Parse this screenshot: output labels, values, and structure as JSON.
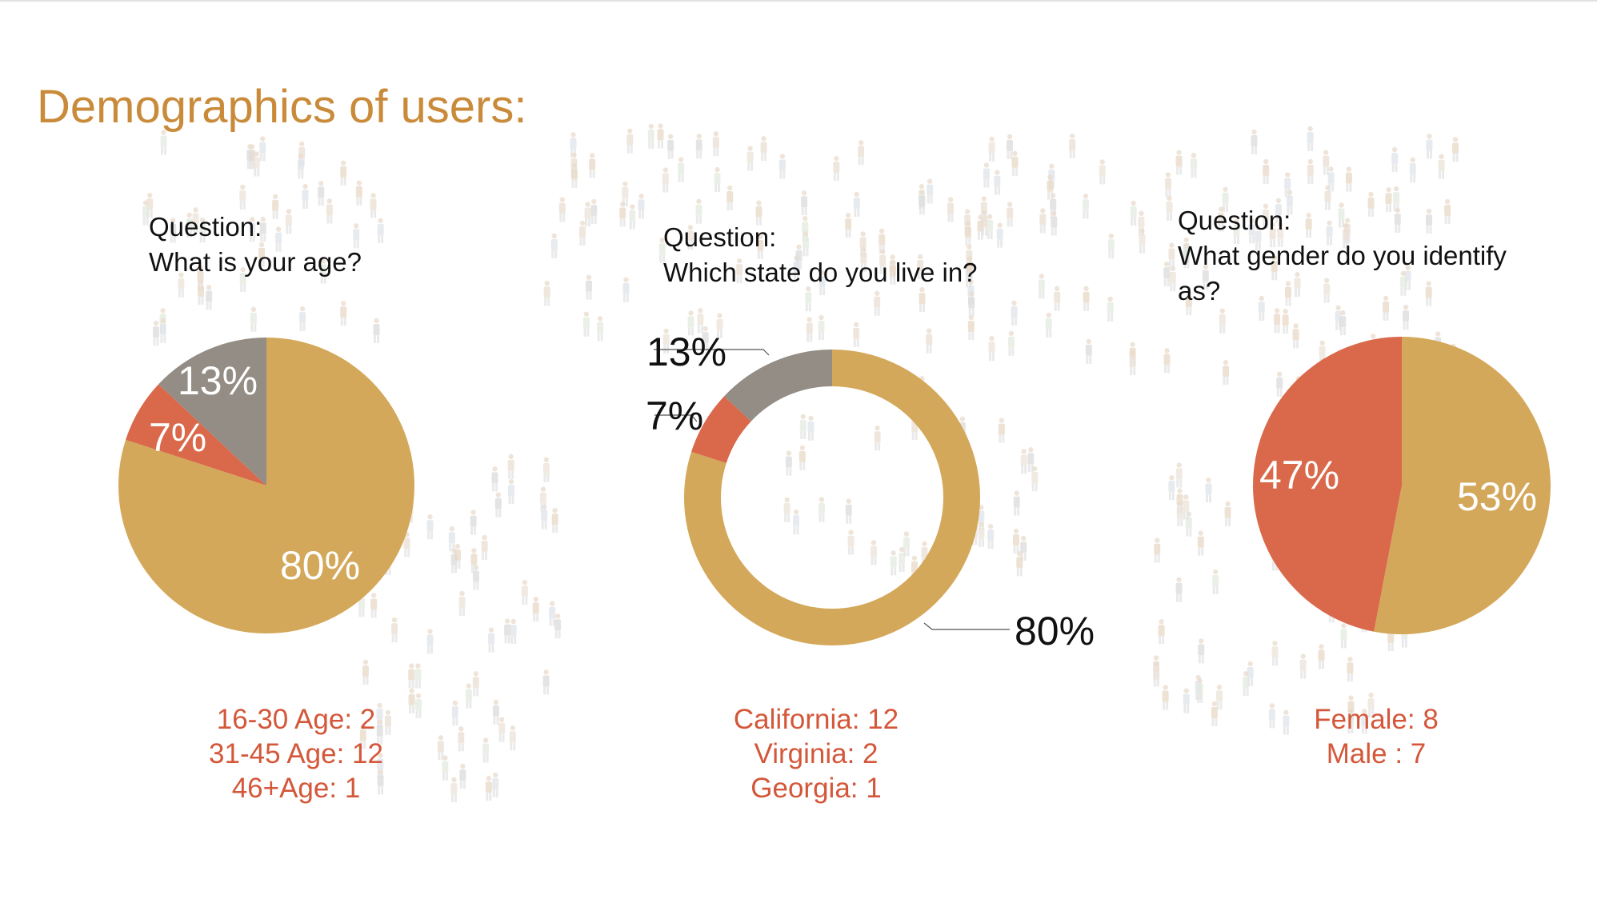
{
  "title": "Demographics of users:",
  "colors": {
    "gold": "#d4a85a",
    "orange": "#d9694a",
    "gray": "#948d85",
    "title": "#c98b3a",
    "stats": "#d4573a"
  },
  "chart_data": [
    {
      "type": "pie",
      "question_label": "Question:",
      "question": "What is your age?",
      "slices": [
        {
          "label": "80%",
          "value": 80,
          "color": "#d4a85a"
        },
        {
          "label": "7%",
          "value": 7,
          "color": "#d9694a"
        },
        {
          "label": "13%",
          "value": 13,
          "color": "#948d85"
        }
      ],
      "stats": [
        "16-30 Age: 2",
        "31-45 Age: 12",
        "46+Age: 1"
      ]
    },
    {
      "type": "donut",
      "question_label": "Question:",
      "question": "Which state do you live in?",
      "slices": [
        {
          "label": "80%",
          "value": 80,
          "color": "#d4a85a"
        },
        {
          "label": "7%",
          "value": 7,
          "color": "#d9694a"
        },
        {
          "label": "13%",
          "value": 13,
          "color": "#948d85"
        }
      ],
      "stats": [
        "California: 12",
        "Virginia: 2",
        "Georgia: 1"
      ]
    },
    {
      "type": "pie",
      "question_label": "Question:",
      "question": "What gender do you identify as?",
      "slices": [
        {
          "label": "53%",
          "value": 53,
          "color": "#d4a85a"
        },
        {
          "label": "47%",
          "value": 47,
          "color": "#d9694a"
        }
      ],
      "stats": [
        "Female: 8",
        "Male : 7"
      ]
    }
  ]
}
